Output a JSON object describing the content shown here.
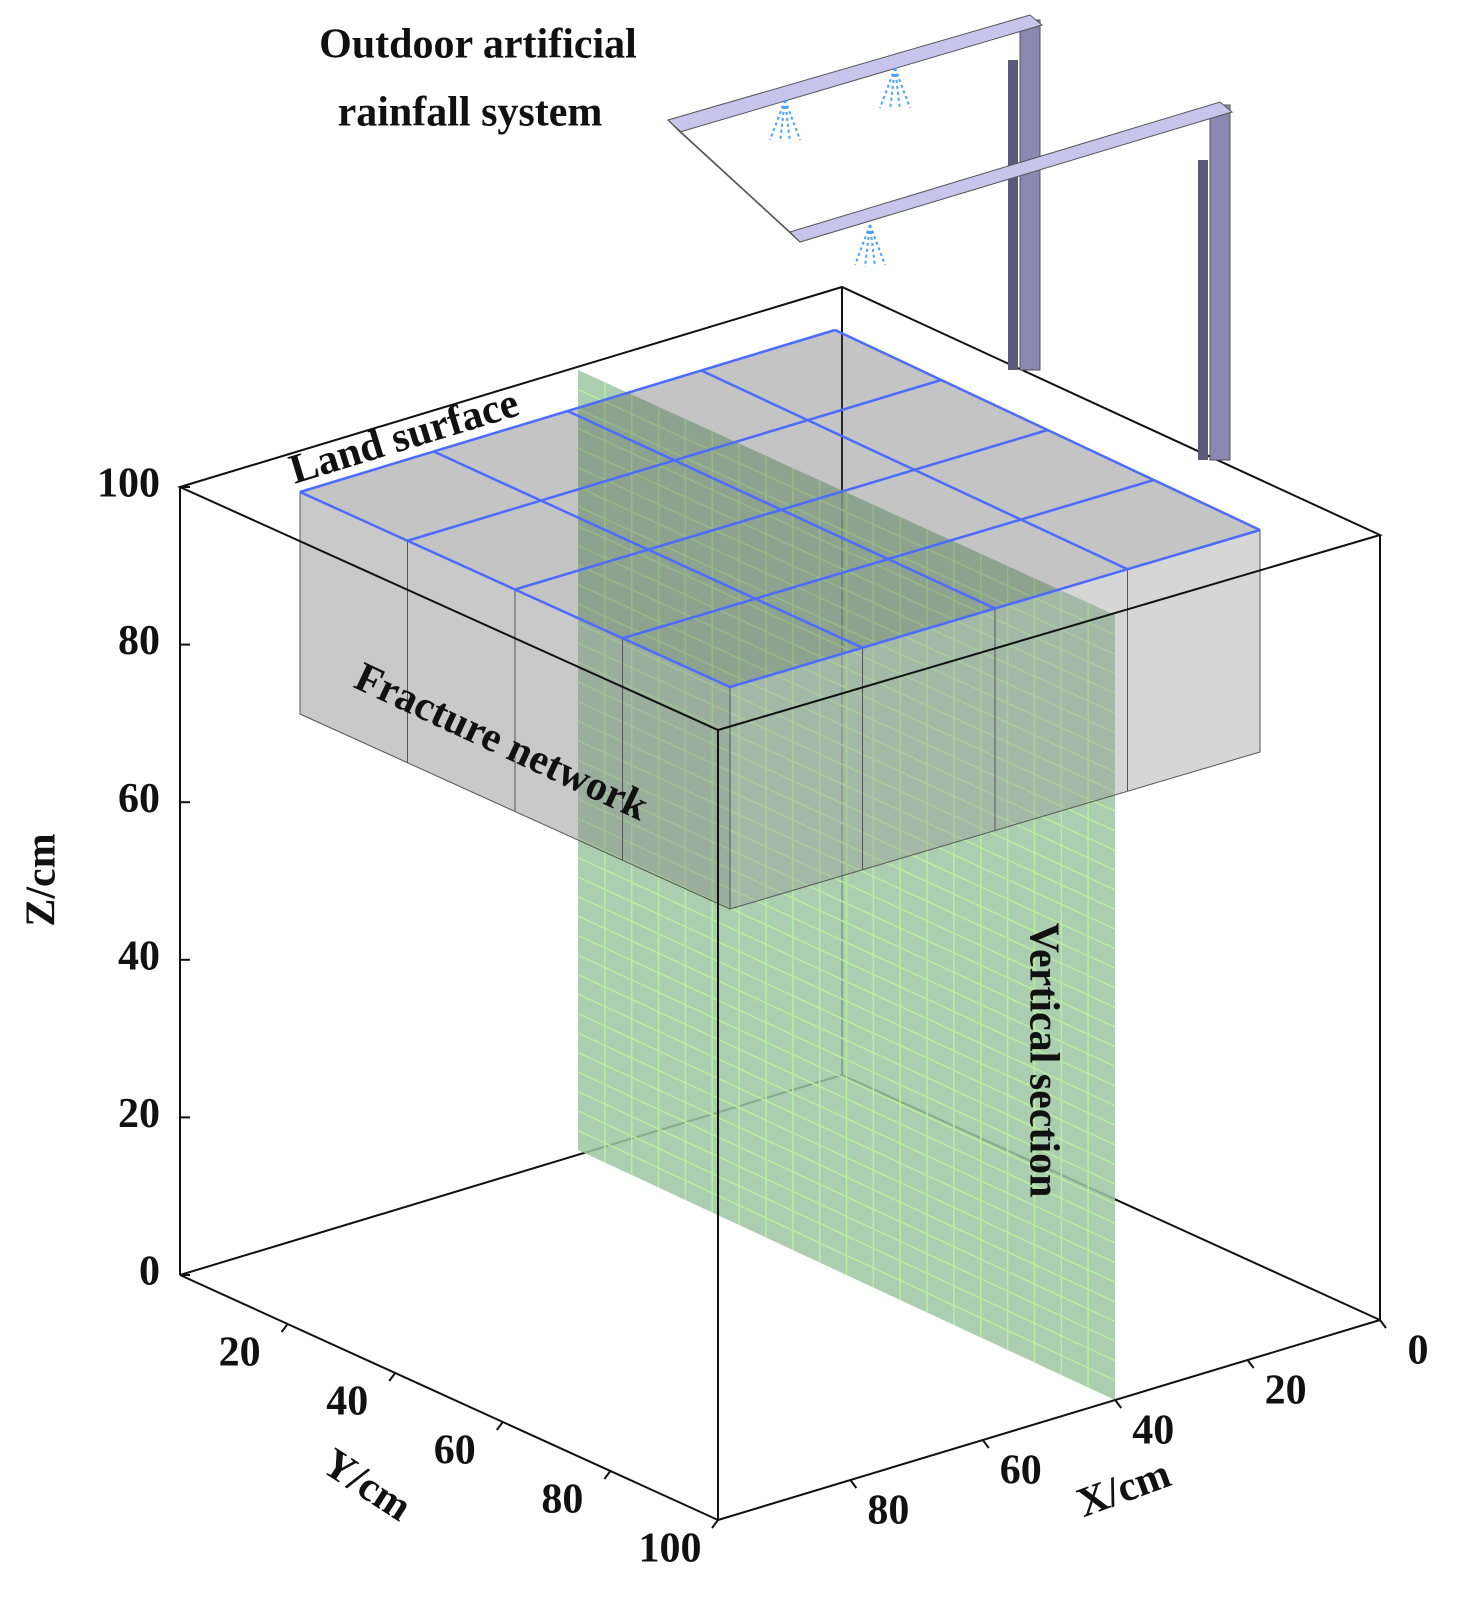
{
  "title_lines": [
    "Outdoor artificial",
    "rainfall system"
  ],
  "labels": {
    "land_surface": "Land surface",
    "fracture_network": "Fracture network",
    "vertical_section": "Vertical section"
  },
  "axes": {
    "z": {
      "title": "Z/cm",
      "range": [
        0,
        100
      ],
      "ticks": [
        0,
        20,
        40,
        60,
        80,
        100
      ]
    },
    "y": {
      "title": "Y/cm",
      "range": [
        0,
        100
      ],
      "ticks": [
        20,
        40,
        60,
        80,
        100
      ]
    },
    "x": {
      "title": "X/cm",
      "range": [
        0,
        100
      ],
      "ticks": [
        0,
        20,
        40,
        60,
        80
      ]
    }
  }
}
